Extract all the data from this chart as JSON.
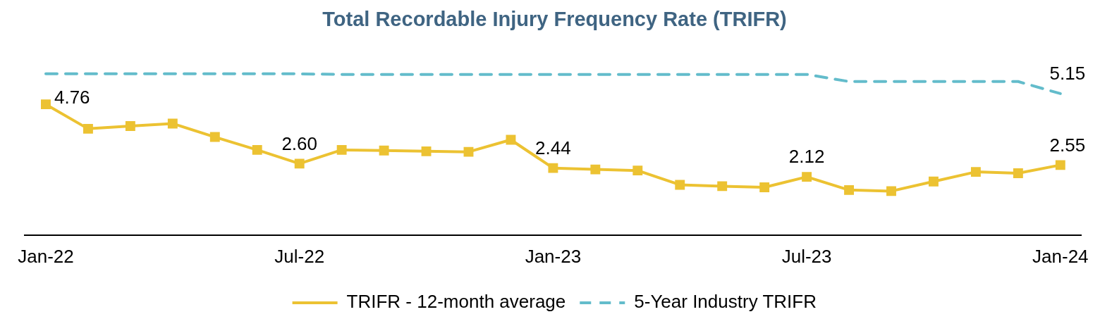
{
  "chart_data": {
    "type": "line",
    "title": "Total Recordable Injury Frequency Rate (TRIFR)",
    "categories": [
      "Jan-22",
      null,
      null,
      null,
      null,
      null,
      "Jul-22",
      null,
      null,
      null,
      null,
      null,
      "Jan-23",
      null,
      null,
      null,
      null,
      null,
      "Jul-23",
      null,
      null,
      null,
      null,
      null,
      "Jan-24"
    ],
    "tick_labels": "x",
    "grid": false,
    "legend": "bottom",
    "series": [
      {
        "name": "TRIFR - 12-month average",
        "color": "#ecc232",
        "marker": "square",
        "line_style": "solid",
        "values": [
          4.76,
          3.87,
          3.97,
          4.06,
          3.57,
          3.1,
          2.6,
          3.1,
          3.08,
          3.05,
          3.03,
          3.47,
          2.44,
          2.39,
          2.35,
          1.83,
          1.78,
          1.74,
          2.12,
          1.64,
          1.6,
          1.95,
          2.3,
          2.25,
          2.55
        ],
        "value_labels": [
          "4.76",
          null,
          null,
          null,
          null,
          null,
          "2.60",
          null,
          null,
          null,
          null,
          null,
          "2.44",
          null,
          null,
          null,
          null,
          null,
          "2.12",
          null,
          null,
          null,
          null,
          null,
          "2.55"
        ]
      },
      {
        "name": "5-Year Industry TRIFR",
        "color": "#63bccb",
        "marker": "none",
        "line_style": "dashed",
        "values": [
          5.87,
          5.87,
          5.87,
          5.87,
          5.87,
          5.87,
          5.87,
          5.85,
          5.85,
          5.85,
          5.85,
          5.85,
          5.85,
          5.85,
          5.85,
          5.85,
          5.85,
          5.85,
          5.85,
          5.59,
          5.59,
          5.59,
          5.59,
          5.59,
          5.15
        ],
        "value_labels": [
          null,
          null,
          null,
          null,
          null,
          null,
          null,
          null,
          null,
          null,
          null,
          null,
          null,
          null,
          null,
          null,
          null,
          null,
          null,
          null,
          null,
          null,
          null,
          null,
          "5.15"
        ]
      }
    ]
  }
}
